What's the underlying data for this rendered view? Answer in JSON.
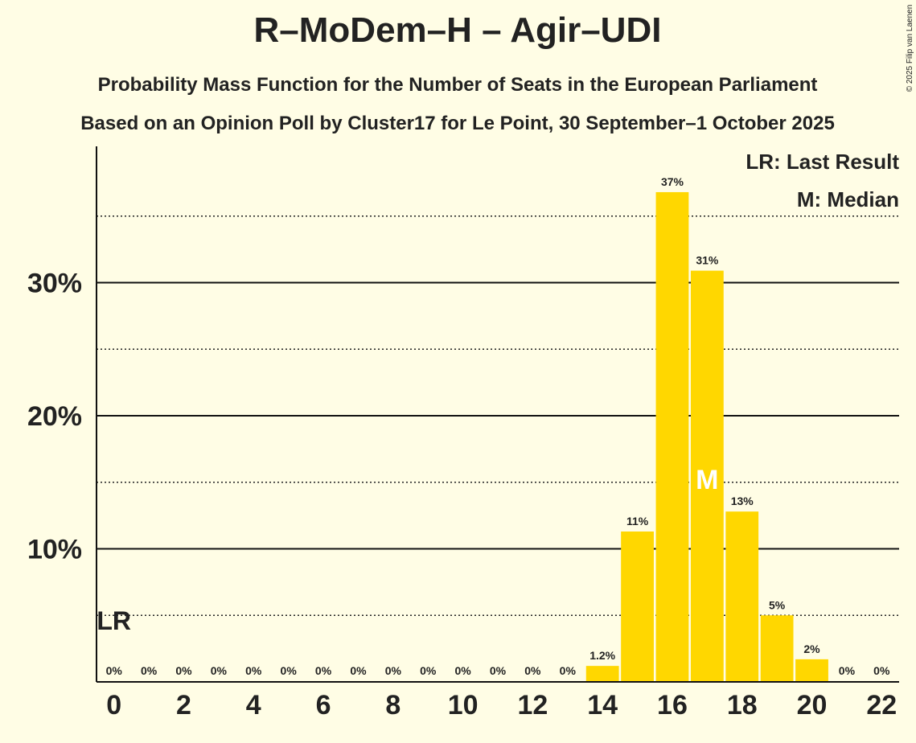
{
  "chart_data": {
    "type": "bar",
    "title": "R–MoDem–H – Agir–UDI",
    "subtitle": "Probability Mass Function for the Number of Seats in the European Parliament",
    "subtitle2": "Based on an Opinion Poll by Cluster17 for Le Point, 30 September–1 October 2025",
    "copyright": "© 2025 Filip van Laenen",
    "x": [
      0,
      1,
      2,
      3,
      4,
      5,
      6,
      7,
      8,
      9,
      10,
      11,
      12,
      13,
      14,
      15,
      16,
      17,
      18,
      19,
      20,
      21,
      22
    ],
    "values": [
      0,
      0,
      0,
      0,
      0,
      0,
      0,
      0,
      0,
      0,
      0,
      0,
      0,
      0,
      1.2,
      11.3,
      36.8,
      30.9,
      12.8,
      5.0,
      1.7,
      0,
      0
    ],
    "value_labels": [
      "0%",
      "0%",
      "0%",
      "0%",
      "0%",
      "0%",
      "0%",
      "0%",
      "0%",
      "0%",
      "0%",
      "0%",
      "0%",
      "0%",
      "1.2%",
      "11%",
      "37%",
      "31%",
      "13%",
      "5%",
      "2%",
      "0%",
      "0%"
    ],
    "color": "#ffd700",
    "xlim": [
      -0.5,
      22.5
    ],
    "xticks": [
      0,
      2,
      4,
      6,
      8,
      10,
      12,
      14,
      16,
      18,
      20,
      22
    ],
    "ylim": [
      0,
      40
    ],
    "yticks": [
      {
        "value": 10,
        "label": "10%"
      },
      {
        "value": 20,
        "label": "20%"
      },
      {
        "value": 30,
        "label": "30%"
      }
    ],
    "minor_yticks": [
      5,
      15,
      25,
      35
    ],
    "grid": true,
    "last_result": {
      "x": 0,
      "label": "LR"
    },
    "median": {
      "x": 17,
      "label": "M"
    },
    "legend": [
      "LR: Last Result",
      "M: Median"
    ],
    "legend_position": "top-right"
  }
}
